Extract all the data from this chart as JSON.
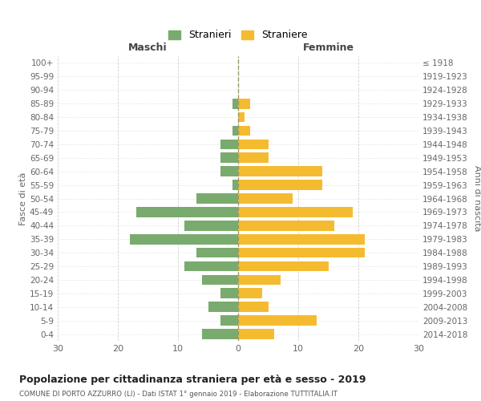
{
  "age_groups": [
    "0-4",
    "5-9",
    "10-14",
    "15-19",
    "20-24",
    "25-29",
    "30-34",
    "35-39",
    "40-44",
    "45-49",
    "50-54",
    "55-59",
    "60-64",
    "65-69",
    "70-74",
    "75-79",
    "80-84",
    "85-89",
    "90-94",
    "95-99",
    "100+"
  ],
  "birth_years": [
    "2014-2018",
    "2009-2013",
    "2004-2008",
    "1999-2003",
    "1994-1998",
    "1989-1993",
    "1984-1988",
    "1979-1983",
    "1974-1978",
    "1969-1973",
    "1964-1968",
    "1959-1963",
    "1954-1958",
    "1949-1953",
    "1944-1948",
    "1939-1943",
    "1934-1938",
    "1929-1933",
    "1924-1928",
    "1919-1923",
    "≤ 1918"
  ],
  "maschi": [
    6,
    3,
    5,
    3,
    6,
    9,
    7,
    18,
    9,
    17,
    7,
    1,
    3,
    3,
    3,
    1,
    0,
    1,
    0,
    0,
    0
  ],
  "femmine": [
    6,
    13,
    5,
    4,
    7,
    15,
    21,
    21,
    16,
    19,
    9,
    14,
    14,
    5,
    5,
    2,
    1,
    2,
    0,
    0,
    0
  ],
  "color_maschi": "#7aab6e",
  "color_femmine": "#f5bb30",
  "background_color": "#ffffff",
  "grid_color": "#cccccc",
  "title": "Popolazione per cittadinanza straniera per età e sesso - 2019",
  "subtitle": "COMUNE DI PORTO AZZURRO (LI) - Dati ISTAT 1° gennaio 2019 - Elaborazione TUTTITALIA.IT",
  "xlabel_left": "Maschi",
  "xlabel_right": "Femmine",
  "ylabel_left": "Fasce di età",
  "ylabel_right": "Anni di nascita",
  "legend_maschi": "Stranieri",
  "legend_femmine": "Straniere",
  "xlim": 30
}
